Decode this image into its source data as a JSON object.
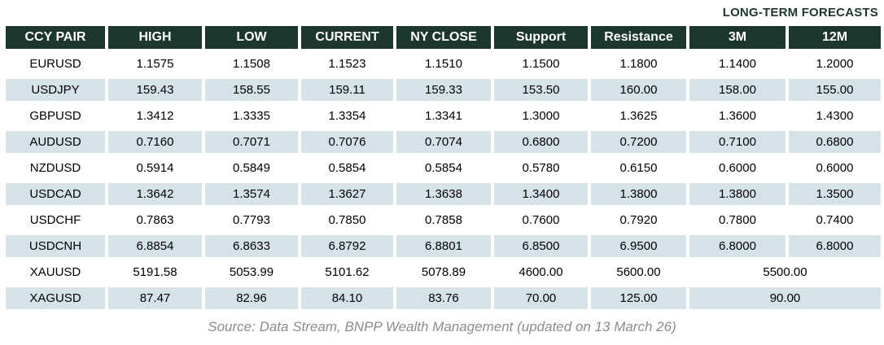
{
  "title": "LONG-TERM FORECASTS",
  "source": "Source: Data Stream, BNPP Wealth Management (updated on 13 March 26)",
  "colors": {
    "header_bg": "#1e3630",
    "header_text": "#ffffff",
    "row_alt_bg": "#d6e2e9",
    "title_text": "#1e3630",
    "source_text": "#8c8c8c"
  },
  "table": {
    "columns": [
      "CCY PAIR",
      "HIGH",
      "LOW",
      "CURRENT",
      "NY CLOSE",
      "Support",
      "Resistance",
      "3M",
      "12M"
    ],
    "rows": [
      {
        "pair": "EURUSD",
        "high": "1.1575",
        "low": "1.1508",
        "current": "1.1523",
        "ny_close": "1.1510",
        "support": "1.1500",
        "resistance": "1.1800",
        "forecast_3m": "1.1400",
        "forecast_12m": "1.2000"
      },
      {
        "pair": "USDJPY",
        "high": "159.43",
        "low": "158.55",
        "current": "159.11",
        "ny_close": "159.33",
        "support": "153.50",
        "resistance": "160.00",
        "forecast_3m": "158.00",
        "forecast_12m": "155.00"
      },
      {
        "pair": "GBPUSD",
        "high": "1.3412",
        "low": "1.3335",
        "current": "1.3354",
        "ny_close": "1.3341",
        "support": "1.3000",
        "resistance": "1.3625",
        "forecast_3m": "1.3600",
        "forecast_12m": "1.4300"
      },
      {
        "pair": "AUDUSD",
        "high": "0.7160",
        "low": "0.7071",
        "current": "0.7076",
        "ny_close": "0.7074",
        "support": "0.6800",
        "resistance": "0.7200",
        "forecast_3m": "0.7100",
        "forecast_12m": "0.6800"
      },
      {
        "pair": "NZDUSD",
        "high": "0.5914",
        "low": "0.5849",
        "current": "0.5854",
        "ny_close": "0.5854",
        "support": "0.5780",
        "resistance": "0.6150",
        "forecast_3m": "0.6000",
        "forecast_12m": "0.6000"
      },
      {
        "pair": "USDCAD",
        "high": "1.3642",
        "low": "1.3574",
        "current": "1.3627",
        "ny_close": "1.3638",
        "support": "1.3400",
        "resistance": "1.3800",
        "forecast_3m": "1.3800",
        "forecast_12m": "1.3500"
      },
      {
        "pair": "USDCHF",
        "high": "0.7863",
        "low": "0.7793",
        "current": "0.7850",
        "ny_close": "0.7858",
        "support": "0.7600",
        "resistance": "0.7920",
        "forecast_3m": "0.7800",
        "forecast_12m": "0.7400"
      },
      {
        "pair": "USDCNH",
        "high": "6.8854",
        "low": "6.8633",
        "current": "6.8792",
        "ny_close": "6.8801",
        "support": "6.8500",
        "resistance": "6.9500",
        "forecast_3m": "6.8000",
        "forecast_12m": "6.8000"
      },
      {
        "pair": "XAUUSD",
        "high": "5191.58",
        "low": "5053.99",
        "current": "5101.62",
        "ny_close": "5078.89",
        "support": "4600.00",
        "resistance": "5600.00",
        "forecast_long_term": "5500.00"
      },
      {
        "pair": "XAGUSD",
        "high": "87.47",
        "low": "82.96",
        "current": "84.10",
        "ny_close": "83.76",
        "support": "70.00",
        "resistance": "125.00",
        "forecast_long_term": "90.00"
      }
    ]
  }
}
